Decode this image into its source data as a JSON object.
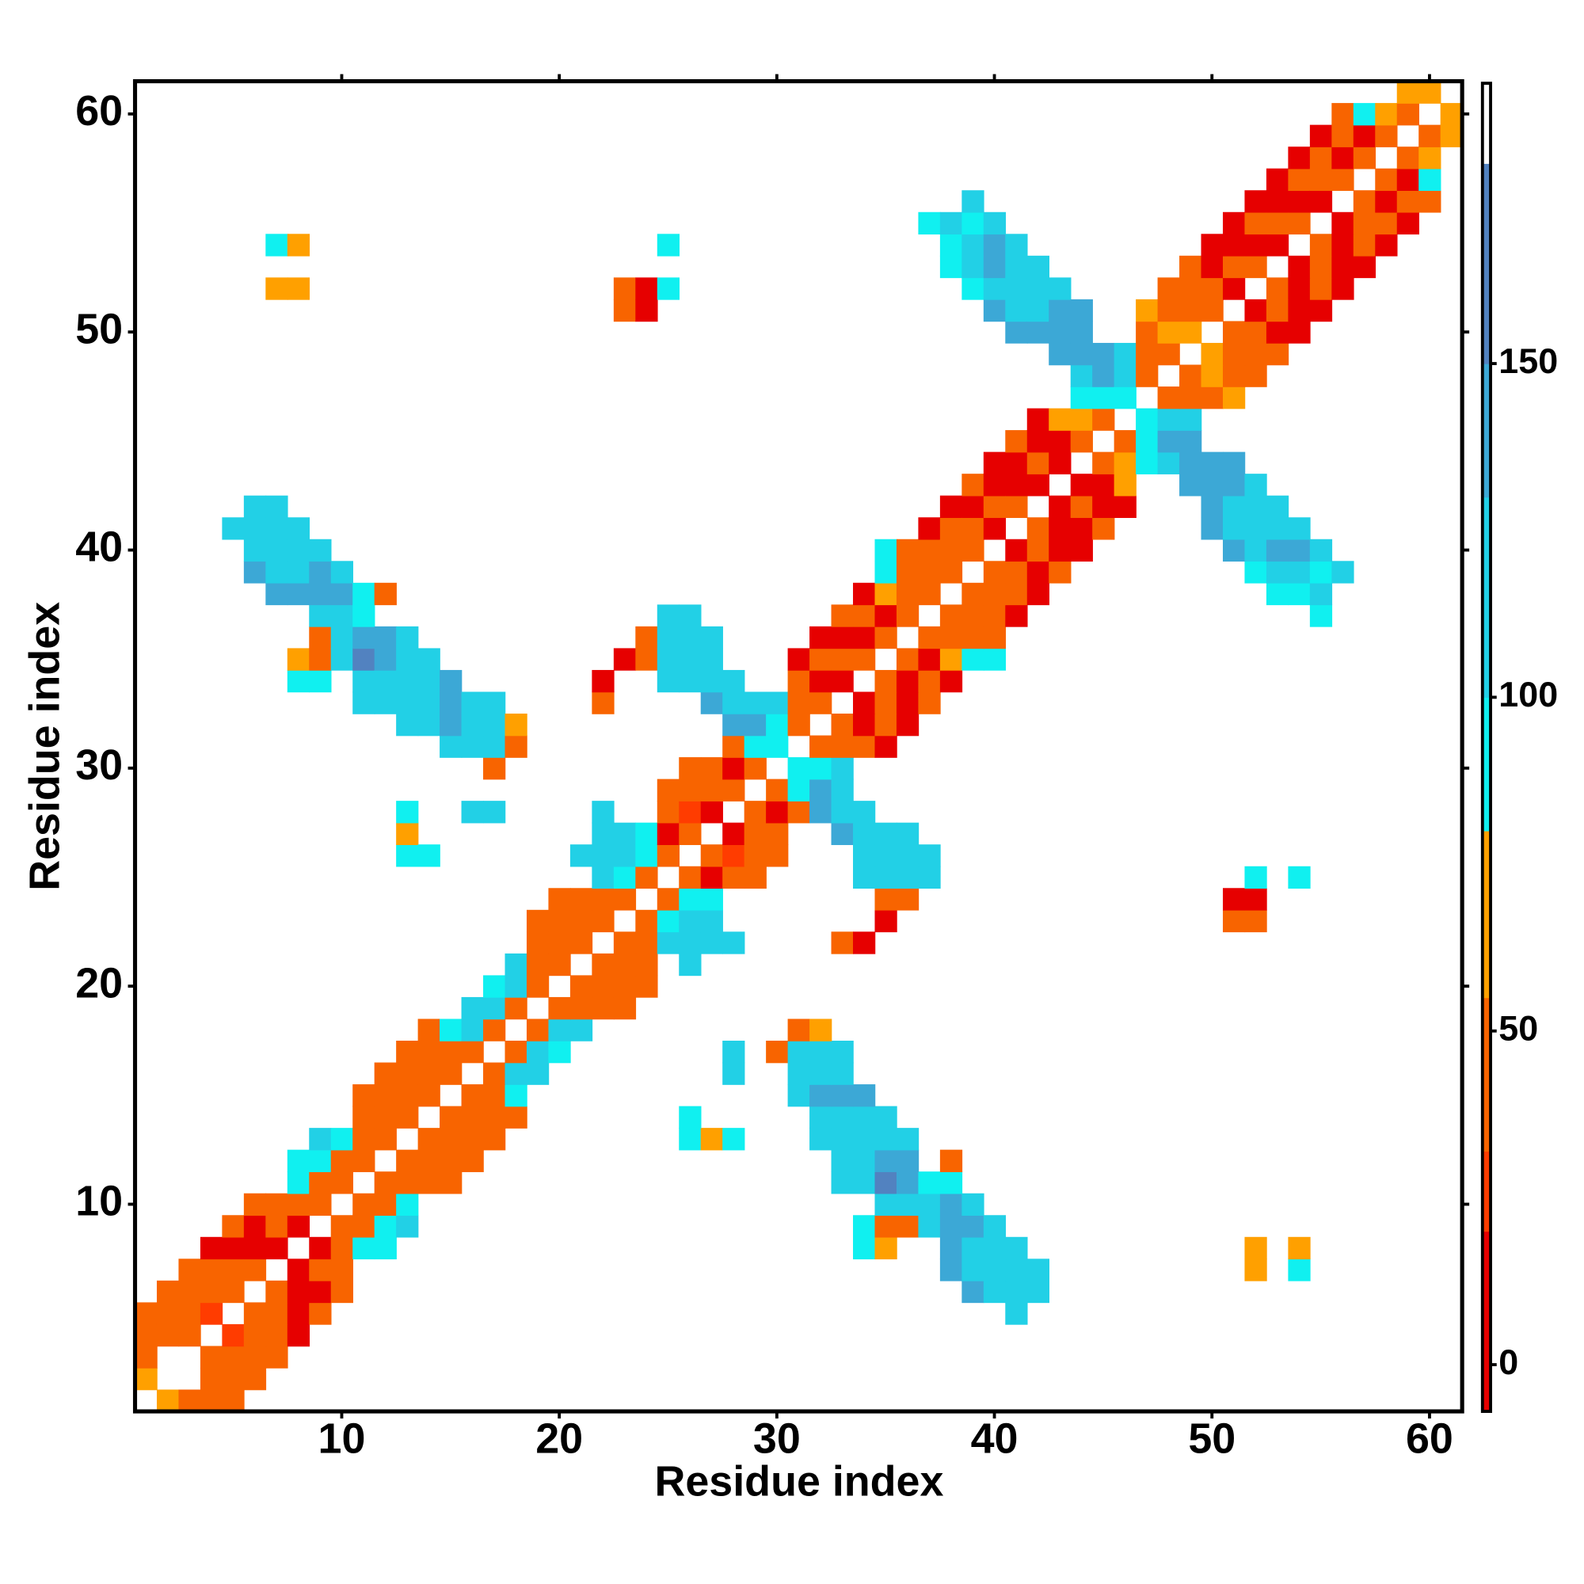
{
  "chart_data": {
    "type": "heatmap",
    "xlabel": "Residue index",
    "ylabel": "Residue index",
    "xlim": [
      0.5,
      61.5
    ],
    "ylim": [
      0.5,
      61.5
    ],
    "xticks": [
      10,
      20,
      30,
      40,
      50,
      60
    ],
    "yticks": [
      10,
      20,
      30,
      40,
      50,
      60
    ],
    "symmetric": true,
    "colorbar": {
      "lim": [
        -7,
        192
      ],
      "ticks": [
        0,
        50,
        100,
        150
      ],
      "bands": [
        {
          "value": -7,
          "color": "#e60000"
        },
        {
          "value": 20,
          "color": "#ff3c00"
        },
        {
          "value": 32,
          "color": "#f86400"
        },
        {
          "value": 55,
          "color": "#ffa000"
        },
        {
          "value": 80,
          "color": "#10f0f0"
        },
        {
          "value": 100,
          "color": "#22d0e6"
        },
        {
          "value": 130,
          "color": "#3ca8d6"
        },
        {
          "value": 150,
          "color": "#5282c0"
        },
        {
          "value": 180,
          "color": "#ffffff"
        }
      ]
    },
    "columns": [
      {
        "x": 1,
        "y0": 2,
        "values": [
          65,
          40,
          40,
          40
        ]
      },
      {
        "x": 2,
        "y0": 4,
        "values": [
          40,
          40,
          40
        ]
      },
      {
        "x": 3,
        "y0": 4,
        "values": [
          40,
          40,
          40,
          40
        ]
      },
      {
        "x": 4,
        "y0": 5,
        "values": [
          25,
          40,
          40,
          10
        ]
      },
      {
        "x": 5,
        "y0": 6,
        "values": [
          40,
          40,
          10,
          40
        ]
      },
      {
        "x": 5,
        "y0": 41,
        "values": [
          120
        ]
      },
      {
        "x": 6,
        "y0": 7,
        "values": [
          40,
          10,
          10,
          40
        ]
      },
      {
        "x": 6,
        "y0": 39,
        "values": [
          140,
          120,
          120,
          120
        ]
      },
      {
        "x": 7,
        "y0": 8,
        "values": [
          10,
          40,
          40
        ]
      },
      {
        "x": 7,
        "y0": 38,
        "values": [
          140,
          120,
          120,
          120,
          120
        ]
      },
      {
        "x": 7,
        "y0": 52,
        "values": [
          65,
          null,
          90
        ]
      },
      {
        "x": 8,
        "y0": 9,
        "values": [
          10,
          40,
          90,
          90
        ]
      },
      {
        "x": 8,
        "y0": 34,
        "values": [
          90,
          65,
          null,
          null,
          140,
          120,
          120,
          120
        ]
      },
      {
        "x": 8,
        "y0": 52,
        "values": [
          65,
          null,
          65
        ]
      },
      {
        "x": 9,
        "y0": 10,
        "values": [
          40,
          40,
          90,
          120
        ]
      },
      {
        "x": 9,
        "y0": 34,
        "values": [
          90,
          40,
          40,
          120,
          140,
          140,
          120
        ]
      },
      {
        "x": 10,
        "y0": 11,
        "values": [
          40,
          40,
          90
        ]
      },
      {
        "x": 10,
        "y0": 35,
        "values": [
          120,
          120,
          120,
          140,
          120
        ]
      },
      {
        "x": 11,
        "y0": 12,
        "values": [
          40,
          40,
          40,
          40
        ]
      },
      {
        "x": 11,
        "y0": 33,
        "values": [
          120,
          120,
          165,
          140,
          90,
          90
        ]
      },
      {
        "x": 12,
        "y0": 13,
        "values": [
          40,
          40,
          40,
          40
        ]
      },
      {
        "x": 12,
        "y0": 33,
        "values": [
          120,
          120,
          140,
          140,
          null,
          40
        ]
      },
      {
        "x": 13,
        "y0": 14,
        "values": [
          40,
          40,
          40,
          40
        ]
      },
      {
        "x": 13,
        "y0": 26,
        "values": [
          90,
          65,
          90
        ]
      },
      {
        "x": 13,
        "y0": 32,
        "values": [
          120,
          120,
          120,
          120,
          120
        ]
      },
      {
        "x": 14,
        "y0": 15,
        "values": [
          40,
          40,
          40,
          40
        ]
      },
      {
        "x": 14,
        "y0": 26,
        "values": [
          90
        ]
      },
      {
        "x": 14,
        "y0": 32,
        "values": [
          120,
          120,
          120,
          120
        ]
      },
      {
        "x": 15,
        "y0": 16,
        "values": [
          40,
          40,
          90
        ]
      },
      {
        "x": 15,
        "y0": 31,
        "values": [
          120,
          140,
          140,
          140
        ]
      },
      {
        "x": 16,
        "y0": 17,
        "values": [
          40,
          120,
          120
        ]
      },
      {
        "x": 16,
        "y0": 28,
        "values": [
          120,
          null,
          null,
          120,
          120,
          120
        ]
      },
      {
        "x": 17,
        "y0": 18,
        "values": [
          40,
          120,
          90
        ]
      },
      {
        "x": 17,
        "y0": 28,
        "values": [
          120,
          null,
          40,
          120,
          120,
          120
        ]
      },
      {
        "x": 18,
        "y0": 19,
        "values": [
          40,
          120,
          120
        ]
      },
      {
        "x": 18,
        "y0": 31,
        "values": [
          40,
          65
        ]
      },
      {
        "x": 19,
        "y0": 20,
        "values": [
          40,
          40,
          40,
          40
        ]
      },
      {
        "x": 20,
        "y0": 21,
        "values": [
          40,
          40,
          40,
          40
        ]
      },
      {
        "x": 21,
        "y0": 22,
        "values": [
          40,
          40,
          40,
          null,
          120
        ]
      },
      {
        "x": 22,
        "y0": 23,
        "values": [
          40,
          40,
          120,
          120,
          120,
          120
        ]
      },
      {
        "x": 22,
        "y0": 33,
        "values": [
          40,
          10
        ]
      },
      {
        "x": 23,
        "y0": 24,
        "values": [
          40,
          90,
          120,
          120
        ]
      },
      {
        "x": 23,
        "y0": 35,
        "values": [
          10
        ]
      },
      {
        "x": 23,
        "y0": 51,
        "values": [
          40,
          40
        ]
      },
      {
        "x": 24,
        "y0": 25,
        "values": [
          40,
          90,
          90
        ]
      },
      {
        "x": 24,
        "y0": 35,
        "values": [
          40,
          40
        ]
      },
      {
        "x": 24,
        "y0": 51,
        "values": [
          10,
          10
        ]
      },
      {
        "x": 25,
        "y0": 26,
        "values": [
          40,
          10,
          40,
          40
        ]
      },
      {
        "x": 25,
        "y0": 34,
        "values": [
          120,
          120,
          120,
          120
        ]
      },
      {
        "x": 25,
        "y0": 52,
        "values": [
          90,
          null,
          90
        ]
      },
      {
        "x": 26,
        "y0": 27,
        "values": [
          40,
          25,
          40,
          40
        ]
      },
      {
        "x": 26,
        "y0": 34,
        "values": [
          120,
          120,
          120,
          120
        ]
      },
      {
        "x": 27,
        "y0": 28,
        "values": [
          10,
          40,
          40,
          null,
          null,
          140,
          120,
          120,
          120
        ]
      },
      {
        "x": 28,
        "y0": 29,
        "values": [
          40,
          10,
          40,
          140,
          120,
          120
        ]
      },
      {
        "x": 29,
        "y0": 30,
        "values": [
          40,
          90,
          140,
          120
        ]
      },
      {
        "x": 30,
        "y0": 31,
        "values": [
          90,
          90,
          120
        ]
      },
      {
        "x": 31,
        "y0": 32,
        "values": [
          40,
          40,
          40,
          10
        ]
      },
      {
        "x": 32,
        "y0": 33,
        "values": [
          40,
          10,
          40,
          10
        ]
      },
      {
        "x": 33,
        "y0": 34,
        "values": [
          10,
          40,
          10,
          40
        ]
      },
      {
        "x": 34,
        "y0": 35,
        "values": [
          40,
          10,
          40,
          10
        ]
      },
      {
        "x": 35,
        "y0": 36,
        "values": [
          40,
          10,
          65,
          90,
          90
        ]
      },
      {
        "x": 36,
        "y0": 37,
        "values": [
          40,
          40,
          40,
          40
        ]
      },
      {
        "x": 37,
        "y0": 38,
        "values": [
          40,
          40,
          40,
          10
        ]
      },
      {
        "x": 37,
        "y0": 55,
        "values": [
          90
        ]
      },
      {
        "x": 38,
        "y0": 39,
        "values": [
          40,
          40,
          40,
          10
        ]
      },
      {
        "x": 38,
        "y0": 53,
        "values": [
          90,
          90,
          120
        ]
      },
      {
        "x": 39,
        "y0": 40,
        "values": [
          40,
          40,
          10,
          40
        ]
      },
      {
        "x": 39,
        "y0": 52,
        "values": [
          90,
          120,
          120,
          90,
          120
        ]
      },
      {
        "x": 40,
        "y0": 41,
        "values": [
          10,
          40,
          10,
          10
        ]
      },
      {
        "x": 40,
        "y0": 51,
        "values": [
          140,
          120,
          140,
          140,
          120
        ]
      },
      {
        "x": 41,
        "y0": 42,
        "values": [
          40,
          10,
          10,
          40
        ]
      },
      {
        "x": 41,
        "y0": 50,
        "values": [
          140,
          120,
          120,
          120,
          120
        ]
      },
      {
        "x": 42,
        "y0": 43,
        "values": [
          10,
          40,
          10,
          10
        ]
      },
      {
        "x": 42,
        "y0": 50,
        "values": [
          140,
          120,
          120,
          120
        ]
      },
      {
        "x": 43,
        "y0": 44,
        "values": [
          10,
          10,
          65
        ]
      },
      {
        "x": 43,
        "y0": 49,
        "values": [
          140,
          140,
          140,
          120
        ]
      },
      {
        "x": 44,
        "y0": 45,
        "values": [
          40,
          65,
          90,
          120,
          140,
          140,
          140
        ]
      },
      {
        "x": 45,
        "y0": 46,
        "values": [
          40,
          90,
          140,
          140
        ]
      },
      {
        "x": 46,
        "y0": 47,
        "values": [
          90,
          120,
          120
        ]
      },
      {
        "x": 47,
        "y0": 48,
        "values": [
          40,
          40,
          40,
          65
        ]
      },
      {
        "x": 48,
        "y0": 49,
        "values": [
          40,
          65,
          40,
          40
        ]
      },
      {
        "x": 49,
        "y0": 50,
        "values": [
          65,
          40,
          40,
          40
        ]
      },
      {
        "x": 50,
        "y0": 51,
        "values": [
          40,
          40,
          10,
          10
        ]
      },
      {
        "x": 51,
        "y0": 52,
        "values": [
          10,
          40,
          10,
          10
        ]
      },
      {
        "x": 52,
        "y0": 53,
        "values": [
          40,
          10,
          40,
          10
        ]
      },
      {
        "x": 53,
        "y0": 54,
        "values": [
          10,
          40,
          10,
          10
        ]
      },
      {
        "x": 54,
        "y0": 55,
        "values": [
          40,
          10,
          40,
          10
        ]
      },
      {
        "x": 55,
        "y0": 56,
        "values": [
          10,
          40,
          40,
          10
        ]
      },
      {
        "x": 56,
        "y0": 57,
        "values": [
          40,
          10,
          40,
          40
        ]
      },
      {
        "x": 57,
        "y0": 58,
        "values": [
          40,
          10,
          90
        ]
      },
      {
        "x": 58,
        "y0": 59,
        "values": [
          40,
          65
        ]
      },
      {
        "x": 59,
        "y0": 60,
        "values": [
          40,
          65
        ]
      },
      {
        "x": 60,
        "y0": 61,
        "values": [
          65
        ]
      }
    ]
  }
}
